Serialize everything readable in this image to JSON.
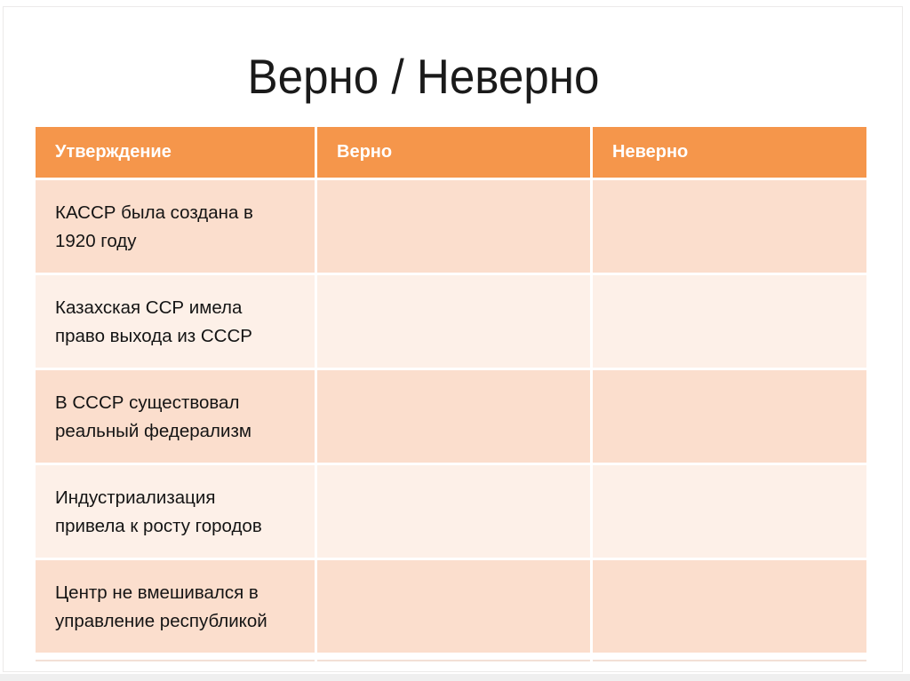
{
  "slide": {
    "title": "Верно / Неверно"
  },
  "table": {
    "headers": [
      "Утверждение",
      "Верно",
      "Неверно"
    ],
    "rows": [
      {
        "statement": "КАССР была создана в\n1920 году",
        "verno": "",
        "neverno": ""
      },
      {
        "statement": "Казахская ССР имела\nправо выхода из СССР",
        "verno": "",
        "neverno": ""
      },
      {
        "statement": "В СССР существовал\nреальный федерализм",
        "verno": "",
        "neverno": ""
      },
      {
        "statement": "Индустриализация\nпривела к росту городов",
        "verno": "",
        "neverno": ""
      },
      {
        "statement": "Центр не вмешивался в\nуправление республикой",
        "verno": "",
        "neverno": ""
      }
    ]
  },
  "colors": {
    "accent_orange": "#F5964B",
    "band_dark": "#FBDECD",
    "band_light": "#FDF0E8",
    "header_text": "#FFFFFF",
    "cell_text": "#141414",
    "title_text": "#1A1A1A",
    "frame_border": "#ECEAE9",
    "shadow_line": "#F3E0D6",
    "bottom_band": "#EFEFEF"
  }
}
